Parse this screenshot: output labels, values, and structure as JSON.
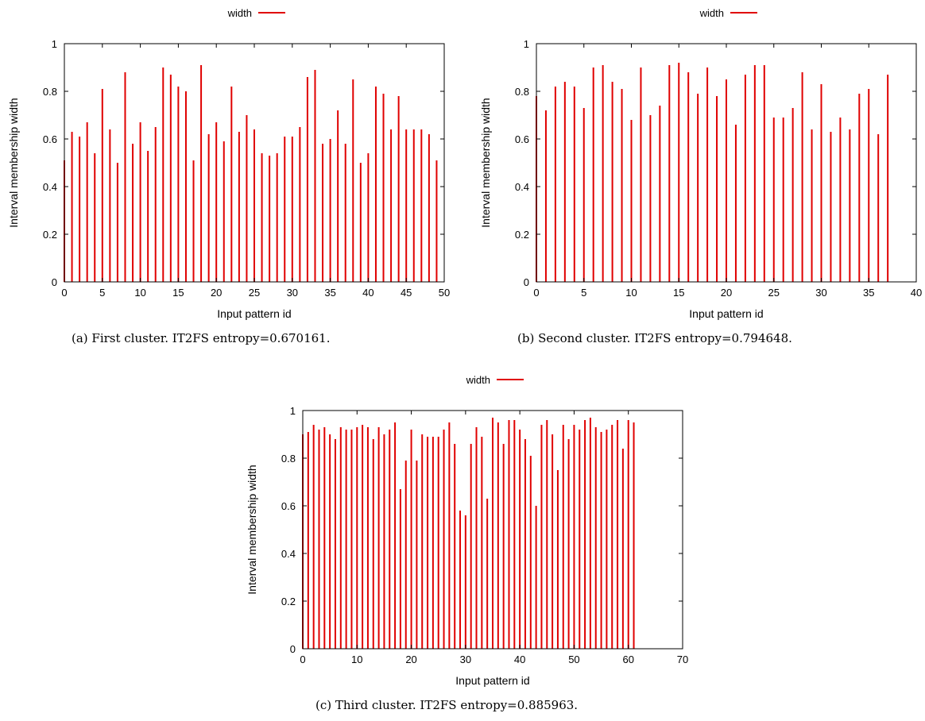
{
  "chart_data": [
    {
      "type": "bar",
      "caption": "(a) First cluster. IT2FS entropy=0.670161.",
      "legend": "width",
      "legend_position": "top-center",
      "xlabel": "Input pattern id",
      "ylabel": "Interval membership width",
      "xlim": [
        0,
        50
      ],
      "ylim": [
        0,
        1
      ],
      "xticks": [
        0,
        5,
        10,
        15,
        20,
        25,
        30,
        35,
        40,
        45,
        50
      ],
      "yticks": [
        0,
        0.2,
        0.4,
        0.6,
        0.8,
        1
      ],
      "color": "#e00000",
      "x": [
        0,
        1,
        2,
        3,
        4,
        5,
        6,
        7,
        8,
        9,
        10,
        11,
        12,
        13,
        14,
        15,
        16,
        17,
        18,
        19,
        20,
        21,
        22,
        23,
        24,
        25,
        26,
        27,
        28,
        29,
        30,
        31,
        32,
        33,
        34,
        35,
        36,
        37,
        38,
        39,
        40,
        41,
        42,
        43,
        44,
        45,
        46,
        47,
        48,
        49
      ],
      "values": [
        0.51,
        0.63,
        0.61,
        0.67,
        0.54,
        0.81,
        0.64,
        0.5,
        0.88,
        0.58,
        0.67,
        0.55,
        0.65,
        0.9,
        0.87,
        0.82,
        0.8,
        0.51,
        0.91,
        0.62,
        0.67,
        0.59,
        0.82,
        0.63,
        0.7,
        0.64,
        0.54,
        0.53,
        0.54,
        0.61,
        0.61,
        0.65,
        0.86,
        0.89,
        0.58,
        0.6,
        0.72,
        0.58,
        0.85,
        0.5,
        0.54,
        0.82,
        0.79,
        0.64,
        0.78,
        0.64,
        0.64,
        0.64,
        0.62,
        0.51
      ]
    },
    {
      "type": "bar",
      "caption": "(b) Second cluster. IT2FS entropy=0.794648.",
      "legend": "width",
      "legend_position": "top-center",
      "xlabel": "Input pattern id",
      "ylabel": "Interval membership width",
      "xlim": [
        0,
        40
      ],
      "ylim": [
        0,
        1
      ],
      "xticks": [
        0,
        5,
        10,
        15,
        20,
        25,
        30,
        35,
        40
      ],
      "yticks": [
        0,
        0.2,
        0.4,
        0.6,
        0.8,
        1
      ],
      "color": "#e00000",
      "x": [
        0,
        1,
        2,
        3,
        4,
        5,
        6,
        7,
        8,
        9,
        10,
        11,
        12,
        13,
        14,
        15,
        16,
        17,
        18,
        19,
        20,
        21,
        22,
        23,
        24,
        25,
        26,
        27,
        28,
        29,
        30,
        31,
        32,
        33,
        34,
        35,
        36,
        37
      ],
      "values": [
        0.78,
        0.72,
        0.82,
        0.84,
        0.82,
        0.73,
        0.9,
        0.91,
        0.84,
        0.81,
        0.68,
        0.9,
        0.7,
        0.74,
        0.91,
        0.92,
        0.88,
        0.79,
        0.9,
        0.78,
        0.85,
        0.66,
        0.87,
        0.91,
        0.91,
        0.69,
        0.69,
        0.73,
        0.88,
        0.64,
        0.83,
        0.63,
        0.69,
        0.64,
        0.79,
        0.81,
        0.62,
        0.87
      ]
    },
    {
      "type": "bar",
      "caption": "(c) Third cluster. IT2FS entropy=0.885963.",
      "legend": "width",
      "legend_position": "top-center",
      "xlabel": "Input pattern id",
      "ylabel": "Interval membership width",
      "xlim": [
        0,
        70
      ],
      "ylim": [
        0,
        1
      ],
      "xticks": [
        0,
        10,
        20,
        30,
        40,
        50,
        60,
        70
      ],
      "yticks": [
        0,
        0.2,
        0.4,
        0.6,
        0.8,
        1
      ],
      "color": "#e00000",
      "x": [
        0,
        1,
        2,
        3,
        4,
        5,
        6,
        7,
        8,
        9,
        10,
        11,
        12,
        13,
        14,
        15,
        16,
        17,
        18,
        19,
        20,
        21,
        22,
        23,
        24,
        25,
        26,
        27,
        28,
        29,
        30,
        31,
        32,
        33,
        34,
        35,
        36,
        37,
        38,
        39,
        40,
        41,
        42,
        43,
        44,
        45,
        46,
        47,
        48,
        49,
        50,
        51,
        52,
        53,
        54,
        55,
        56,
        57,
        58,
        59,
        60,
        61
      ],
      "values": [
        0.9,
        0.91,
        0.94,
        0.92,
        0.93,
        0.9,
        0.88,
        0.93,
        0.92,
        0.92,
        0.93,
        0.94,
        0.93,
        0.88,
        0.93,
        0.9,
        0.92,
        0.95,
        0.67,
        0.79,
        0.92,
        0.79,
        0.9,
        0.89,
        0.89,
        0.89,
        0.92,
        0.95,
        0.86,
        0.58,
        0.56,
        0.86,
        0.93,
        0.89,
        0.63,
        0.97,
        0.95,
        0.86,
        0.96,
        0.96,
        0.92,
        0.88,
        0.81,
        0.6,
        0.94,
        0.96,
        0.9,
        0.75,
        0.94,
        0.88,
        0.94,
        0.92,
        0.96,
        0.97,
        0.93,
        0.91,
        0.92,
        0.94,
        0.96,
        0.84,
        0.96,
        0.95
      ]
    }
  ]
}
